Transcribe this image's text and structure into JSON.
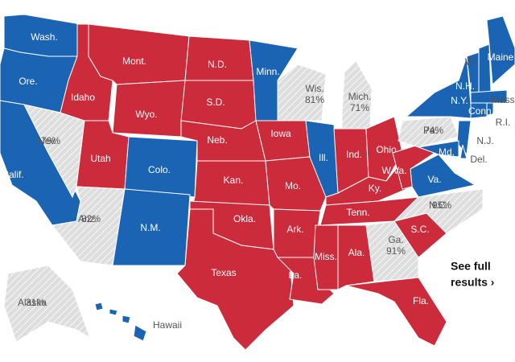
{
  "colors": {
    "rep": "#cb2b3a",
    "dem": "#1a64b3",
    "pending": "#dedede"
  },
  "states": [
    {
      "label": "Wash.",
      "winner": "dem"
    },
    {
      "label": "Ore.",
      "winner": "dem"
    },
    {
      "label": "Calif.",
      "winner": "dem"
    },
    {
      "label": "Nev.",
      "reported": "79%",
      "winner": "pending"
    },
    {
      "label": "Idaho",
      "winner": "rep"
    },
    {
      "label": "Mont.",
      "winner": "rep"
    },
    {
      "label": "Wyo.",
      "winner": "rep"
    },
    {
      "label": "Utah",
      "winner": "rep"
    },
    {
      "label": "Colo.",
      "winner": "dem"
    },
    {
      "label": "Ariz.",
      "reported": "82%",
      "winner": "pending"
    },
    {
      "label": "N.M.",
      "winner": "dem"
    },
    {
      "label": "N.D.",
      "winner": "rep"
    },
    {
      "label": "S.D.",
      "winner": "rep"
    },
    {
      "label": "Neb.",
      "winner": "rep"
    },
    {
      "label": "Kan.",
      "winner": "rep"
    },
    {
      "label": "Okla.",
      "winner": "rep"
    },
    {
      "label": "Texas",
      "winner": "rep"
    },
    {
      "label": "Minn.",
      "winner": "dem"
    },
    {
      "label": "Iowa",
      "winner": "rep"
    },
    {
      "label": "Mo.",
      "winner": "rep"
    },
    {
      "label": "Ark.",
      "winner": "rep"
    },
    {
      "label": "La.",
      "winner": "rep"
    },
    {
      "label": "Wis.",
      "reported": "81%",
      "winner": "pending"
    },
    {
      "label": "Ill.",
      "winner": "dem"
    },
    {
      "label": "Mich.",
      "reported": "71%",
      "winner": "pending"
    },
    {
      "label": "Ind.",
      "winner": "rep"
    },
    {
      "label": "Ohio",
      "winner": "rep"
    },
    {
      "label": "Ky.",
      "winner": "rep"
    },
    {
      "label": "Tenn.",
      "winner": "rep"
    },
    {
      "label": "Miss.",
      "winner": "rep"
    },
    {
      "label": "Ala.",
      "winner": "rep"
    },
    {
      "label": "Ga.",
      "reported": "91%",
      "winner": "pending"
    },
    {
      "label": "Fla.",
      "winner": "rep"
    },
    {
      "label": "S.C.",
      "winner": "rep"
    },
    {
      "label": "N.C.",
      "reported": "95%",
      "winner": "pending"
    },
    {
      "label": "Va.",
      "winner": "dem"
    },
    {
      "label": "W.Va.",
      "winner": "rep"
    },
    {
      "label": "Pa.",
      "reported": "74%",
      "winner": "pending"
    },
    {
      "label": "N.Y.",
      "winner": "dem"
    },
    {
      "label": "N.J.",
      "winner": "dem"
    },
    {
      "label": "Md.",
      "winner": "dem"
    },
    {
      "label": "Del.",
      "winner": "dem"
    },
    {
      "label": "Vt.",
      "winner": "dem"
    },
    {
      "label": "N.H.",
      "winner": "dem"
    },
    {
      "label": "Maine",
      "winner": "dem"
    },
    {
      "label": "Mass.",
      "winner": "dem"
    },
    {
      "label": "Conn.",
      "winner": "dem"
    },
    {
      "label": "R.I.",
      "winner": "dem"
    },
    {
      "label": "Alaska",
      "reported": "31%",
      "winner": "pending"
    },
    {
      "label": "Hawaii",
      "winner": "dem"
    }
  ],
  "link": {
    "line1": "See full",
    "line2": "results ›"
  }
}
